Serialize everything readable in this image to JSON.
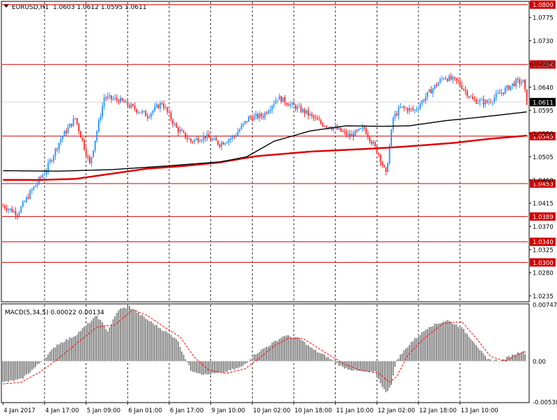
{
  "header": {
    "symbol": "EURUSD,H1",
    "ohlc": "1.0603 1.0612 1.0595 1.0611",
    "menu_arrow": "triangle-down-icon"
  },
  "colors": {
    "bull": "#1e90ff",
    "bear": "#ff2020",
    "level_line": "#d00000",
    "ma_fast": "#000000",
    "ma_slow": "#e00000",
    "macd_hist": "#808080",
    "macd_signal": "#ff0000",
    "current_price_bg": "#000000"
  },
  "chart_data": [
    {
      "type": "candlestick",
      "title": "EURUSD,H1",
      "ylim": [
        1.0225,
        1.0805
      ],
      "y_ticks": [
        "1.0775",
        "1.0730",
        "1.0685",
        "1.0640",
        "1.0595",
        "1.0550",
        "1.0505",
        "1.0460",
        "1.0415",
        "1.0370",
        "1.0325",
        "1.0280",
        "1.0235"
      ],
      "x_labels": [
        "4 Jan 2017",
        "4 Jan 17:00",
        "5 Jan 09:00",
        "6 Jan 01:00",
        "6 Jan 17:00",
        "9 Jan 10:00",
        "10 Jan 02:00",
        "10 Jan 18:00",
        "11 Jan 10:00",
        "12 Jan 02:00",
        "12 Jan 18:00",
        "13 Jan 10:00"
      ],
      "levels": [
        {
          "value": 1.08,
          "label": "1.0800"
        },
        {
          "value": 1.0684,
          "label": "1.0684"
        },
        {
          "value": 1.0545,
          "label": "1.0545"
        },
        {
          "value": 1.0453,
          "label": "1.0453"
        },
        {
          "value": 1.0389,
          "label": "1.0389"
        },
        {
          "value": 1.034,
          "label": "1.0340"
        },
        {
          "value": 1.03,
          "label": "1.0300"
        }
      ],
      "current_price": {
        "value": 1.0611,
        "label": "1.0611"
      },
      "close_path": [
        [
          0,
          1.041
        ],
        [
          8,
          1.0395
        ],
        [
          16,
          1.044
        ],
        [
          24,
          1.048
        ],
        [
          32,
          1.054
        ],
        [
          40,
          1.058
        ],
        [
          48,
          1.049
        ],
        [
          56,
          1.062
        ],
        [
          64,
          1.0615
        ],
        [
          72,
          1.06
        ],
        [
          80,
          1.0585
        ],
        [
          88,
          1.061
        ],
        [
          96,
          1.056
        ],
        [
          104,
          1.0535
        ],
        [
          112,
          1.0545
        ],
        [
          120,
          1.053
        ],
        [
          128,
          1.0545
        ],
        [
          136,
          1.058
        ],
        [
          144,
          1.0585
        ],
        [
          152,
          1.062
        ],
        [
          160,
          1.0605
        ],
        [
          168,
          1.059
        ],
        [
          176,
          1.057
        ],
        [
          184,
          1.056
        ],
        [
          192,
          1.0545
        ],
        [
          200,
          1.056
        ],
        [
          208,
          1.051
        ],
        [
          212,
          1.047
        ],
        [
          216,
          1.058
        ],
        [
          220,
          1.06
        ],
        [
          228,
          1.0595
        ],
        [
          236,
          1.063
        ],
        [
          244,
          1.066
        ],
        [
          252,
          1.065
        ],
        [
          260,
          1.0615
        ],
        [
          268,
          1.061
        ],
        [
          276,
          1.063
        ],
        [
          284,
          1.065
        ],
        [
          288,
          1.065
        ],
        [
          290,
          1.0611
        ]
      ],
      "ma_fast": [
        [
          0,
          1.0478
        ],
        [
          30,
          1.0477
        ],
        [
          60,
          1.048
        ],
        [
          90,
          1.0487
        ],
        [
          120,
          1.0495
        ],
        [
          135,
          1.0505
        ],
        [
          150,
          1.0535
        ],
        [
          170,
          1.0555
        ],
        [
          190,
          1.0565
        ],
        [
          210,
          1.0564
        ],
        [
          225,
          1.0565
        ],
        [
          245,
          1.0575
        ],
        [
          265,
          1.0582
        ],
        [
          290,
          1.0592
        ]
      ],
      "ma_slow": [
        [
          0,
          1.046
        ],
        [
          20,
          1.046
        ],
        [
          40,
          1.0462
        ],
        [
          60,
          1.0472
        ],
        [
          80,
          1.0482
        ],
        [
          100,
          1.0487
        ],
        [
          120,
          1.0494
        ],
        [
          140,
          1.0506
        ],
        [
          170,
          1.0515
        ],
        [
          200,
          1.052
        ],
        [
          220,
          1.0524
        ],
        [
          250,
          1.0532
        ],
        [
          270,
          1.054
        ],
        [
          290,
          1.0546
        ]
      ]
    },
    {
      "type": "bar",
      "title": "MACD(5,34,5) 0.00022 0.00134",
      "ylim": [
        -0.00538,
        0.00747
      ],
      "y_ticks": [
        "0.00747",
        "0.00",
        "-0.00538"
      ],
      "hist": [
        [
          0,
          -0.0028
        ],
        [
          10,
          -0.0024
        ],
        [
          18,
          -0.0008
        ],
        [
          25,
          0.0009
        ],
        [
          30,
          0.0022
        ],
        [
          40,
          0.0034
        ],
        [
          52,
          0.006
        ],
        [
          58,
          0.004
        ],
        [
          64,
          0.0068
        ],
        [
          70,
          0.0072
        ],
        [
          78,
          0.0058
        ],
        [
          88,
          0.0042
        ],
        [
          96,
          0.003
        ],
        [
          104,
          -0.0012
        ],
        [
          112,
          -0.0018
        ],
        [
          122,
          -0.0015
        ],
        [
          132,
          -0.0008
        ],
        [
          140,
          0.001
        ],
        [
          148,
          0.0022
        ],
        [
          156,
          0.0034
        ],
        [
          164,
          0.003
        ],
        [
          172,
          0.0015
        ],
        [
          180,
          0.0005
        ],
        [
          188,
          -0.0008
        ],
        [
          196,
          -0.0013
        ],
        [
          206,
          -0.0015
        ],
        [
          212,
          -0.0042
        ],
        [
          215,
          -0.003
        ],
        [
          218,
          0.0002
        ],
        [
          226,
          0.0025
        ],
        [
          236,
          0.0046
        ],
        [
          246,
          0.0054
        ],
        [
          254,
          0.0044
        ],
        [
          262,
          0.0022
        ],
        [
          268,
          0.0002
        ],
        [
          276,
          0.0001
        ],
        [
          282,
          0.0008
        ],
        [
          288,
          0.0014
        ],
        [
          290,
          0.0002
        ]
      ],
      "signal": [
        [
          0,
          -0.003
        ],
        [
          10,
          -0.0028
        ],
        [
          20,
          -0.0015
        ],
        [
          30,
          0.0002
        ],
        [
          40,
          0.0022
        ],
        [
          52,
          0.0045
        ],
        [
          62,
          0.0048
        ],
        [
          72,
          0.0068
        ],
        [
          80,
          0.006
        ],
        [
          90,
          0.0044
        ],
        [
          98,
          0.0032
        ],
        [
          106,
          0.0005
        ],
        [
          114,
          -0.0012
        ],
        [
          124,
          -0.0016
        ],
        [
          134,
          -0.001
        ],
        [
          142,
          0.0004
        ],
        [
          150,
          0.002
        ],
        [
          158,
          0.003
        ],
        [
          166,
          0.003
        ],
        [
          174,
          0.0018
        ],
        [
          182,
          0.0006
        ],
        [
          190,
          -0.0005
        ],
        [
          198,
          -0.0012
        ],
        [
          208,
          -0.0016
        ],
        [
          214,
          -0.0028
        ],
        [
          218,
          -0.002
        ],
        [
          224,
          0.0008
        ],
        [
          234,
          0.0032
        ],
        [
          244,
          0.005
        ],
        [
          254,
          0.0052
        ],
        [
          262,
          0.003
        ],
        [
          270,
          0.0006
        ],
        [
          278,
          0.0
        ],
        [
          286,
          0.001
        ],
        [
          290,
          0.0013
        ]
      ]
    }
  ]
}
